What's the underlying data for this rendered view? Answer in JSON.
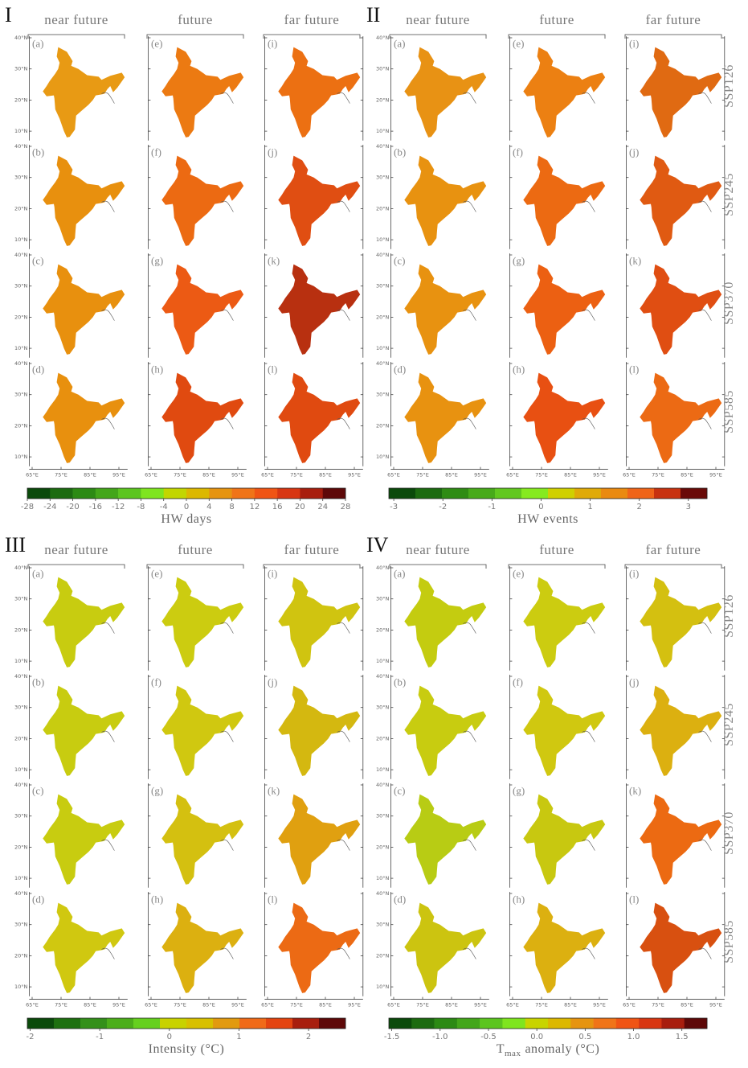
{
  "columns": [
    "near future",
    "future",
    "far future"
  ],
  "scenarios": [
    "SSP126",
    "SSP245",
    "SSP370",
    "SSP585"
  ],
  "panel_letters": [
    "(a)",
    "(b)",
    "(c)",
    "(d)",
    "(e)",
    "(f)",
    "(g)",
    "(h)",
    "(i)",
    "(j)",
    "(k)",
    "(l)"
  ],
  "lat_ticks": [
    {
      "value": 40,
      "label": "40°N"
    },
    {
      "value": 30,
      "label": "30°N"
    },
    {
      "value": 20,
      "label": "20°N"
    },
    {
      "value": 10,
      "label": "10°N"
    }
  ],
  "lon_ticks": [
    {
      "value": 65,
      "label": "65°E"
    },
    {
      "value": 75,
      "label": "75°E"
    },
    {
      "value": 85,
      "label": "85°E"
    },
    {
      "value": 95,
      "label": "95°E"
    }
  ],
  "panels": [
    {
      "numeral": "I",
      "colorbar": {
        "label": "HW days",
        "lim": [
          -28,
          28
        ],
        "ticks": [
          -28,
          -24,
          -20,
          -16,
          -12,
          -8,
          -4,
          0,
          4,
          8,
          12,
          16,
          20,
          24,
          28
        ],
        "colors": [
          "#0b4a0b",
          "#1c6b10",
          "#2c8a14",
          "#43a61a",
          "#5cc51f",
          "#7fe51f",
          "#c2d600",
          "#dcb800",
          "#e69410",
          "#f07418",
          "#f05414",
          "#d83612",
          "#a81e0e",
          "#5e0808"
        ]
      },
      "map_colors": [
        "#e89a14",
        "#e8900e",
        "#e8900e",
        "#e8900e",
        "#ec7a12",
        "#ec6a12",
        "#ec5a14",
        "#e04a10",
        "#ec7012",
        "#e04e12",
        "#b83010",
        "#e04a10"
      ]
    },
    {
      "numeral": "II",
      "colorbar": {
        "label": "HW events",
        "lim": [
          -3.1,
          3.38
        ],
        "ticks": [
          -3,
          -2,
          -1,
          0,
          1,
          2,
          3
        ],
        "colors": [
          "#0b4a0b",
          "#1c6b10",
          "#2f8c14",
          "#48aa1a",
          "#62c81f",
          "#86ea1f",
          "#d0d000",
          "#e0aa08",
          "#ea8a10",
          "#f06418",
          "#c83210",
          "#6a0a08"
        ]
      },
      "map_colors": [
        "#e89214",
        "#e89210",
        "#e89210",
        "#e89210",
        "#ec8012",
        "#ec6a12",
        "#ec6012",
        "#e85012",
        "#e06a12",
        "#e05a12",
        "#e04e12",
        "#ec6a14"
      ]
    },
    {
      "numeral": "III",
      "colorbar": {
        "label": "Intensity (°C)",
        "lim": [
          -2.04,
          2.53
        ],
        "ticks": [
          -2,
          -1,
          0,
          1,
          2
        ],
        "colors": [
          "#0b4a0b",
          "#1e7010",
          "#34901a",
          "#4cae1a",
          "#66d01f",
          "#c8d200",
          "#d8c000",
          "#e29a10",
          "#f06a18",
          "#e44410",
          "#a81e0e",
          "#5e0808"
        ]
      },
      "map_colors": [
        "#c8cc10",
        "#c8cc10",
        "#c8cc10",
        "#d0c810",
        "#cccc10",
        "#d0c810",
        "#d4c010",
        "#dcb010",
        "#d0c410",
        "#d4b810",
        "#e0a010",
        "#ec6a14"
      ]
    },
    {
      "numeral": "IV",
      "colorbar": {
        "label": {
          "text": "T",
          "sub": "max",
          "rest": "anomaly (°C)"
        },
        "lim": [
          -1.53,
          1.76
        ],
        "ticks": [
          -1.5,
          {
            "value": -1.0,
            "label": "-1.0"
          },
          -0.5,
          {
            "value": 0,
            "label": "0.0"
          },
          0.5,
          {
            "value": 1.0,
            "label": "1.0"
          },
          1.5
        ],
        "colors": [
          "#0b4a0b",
          "#1c6b10",
          "#2c8a14",
          "#43a61a",
          "#5cc51f",
          "#7fe51f",
          "#c8d400",
          "#dcb800",
          "#e69410",
          "#f07418",
          "#f05414",
          "#d83612",
          "#a81e0e",
          "#5e0808"
        ]
      },
      "map_colors": [
        "#c4cc10",
        "#c8cc10",
        "#b8cc14",
        "#ccc410",
        "#cccc10",
        "#d0c810",
        "#c8c810",
        "#dcb010",
        "#d4c010",
        "#dcb010",
        "#ec6a12",
        "#d85010"
      ]
    }
  ]
}
